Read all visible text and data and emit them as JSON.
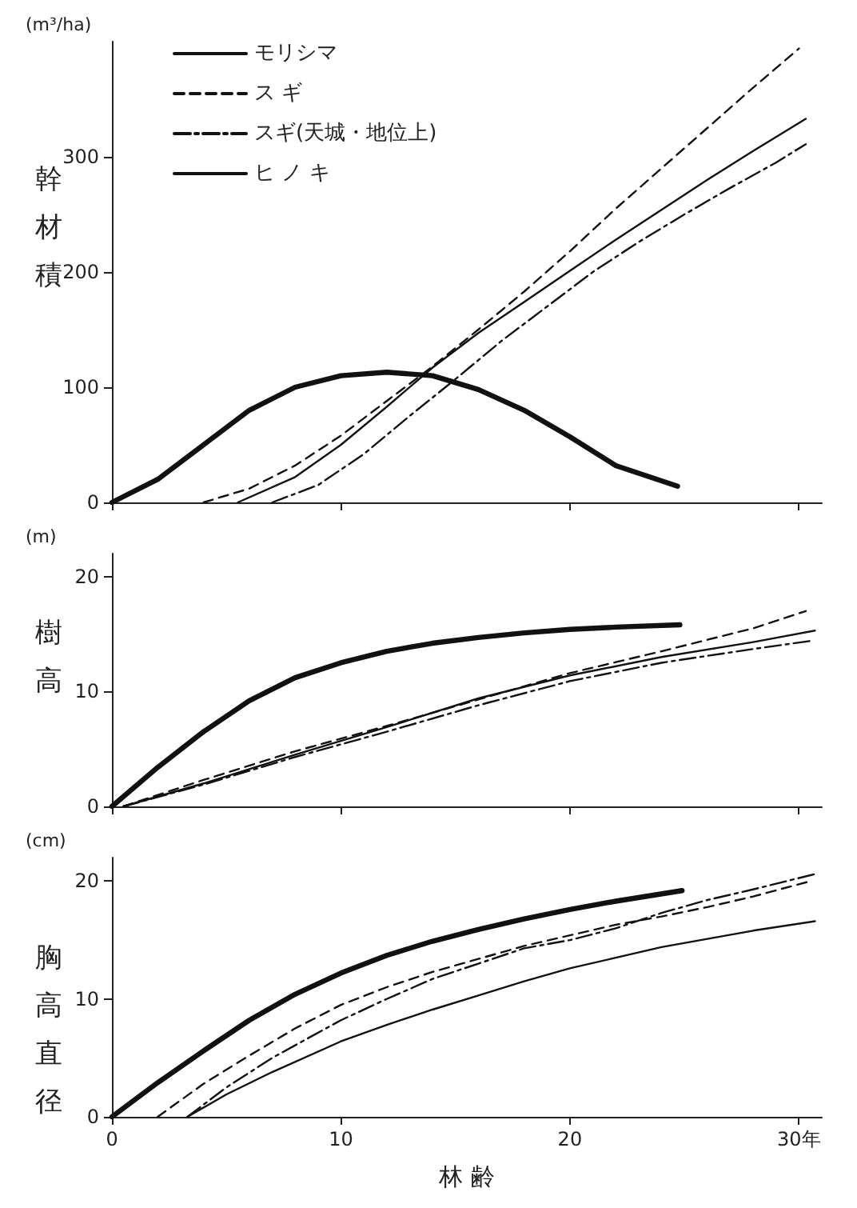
{
  "chart_data": [
    {
      "type": "line",
      "ylabel": "幹材積",
      "annotations": [
        "(m³/ha)"
      ],
      "xlim": [
        0,
        31
      ],
      "xticks": [
        0,
        10,
        20,
        30
      ],
      "ylim": [
        0,
        400
      ],
      "yticks": [
        0,
        100,
        200,
        300
      ],
      "tick_labels": "y",
      "grid": false,
      "legend": "top left",
      "marker": "none",
      "series": [
        {
          "name": "モリシマ",
          "color": "#111111",
          "line_style": "solid",
          "x": [
            0,
            2,
            4,
            6,
            8,
            10,
            12,
            14,
            16,
            18,
            20,
            22,
            24.7
          ],
          "values": [
            0,
            20,
            50,
            80,
            100,
            110,
            113,
            110,
            98,
            80,
            57,
            32,
            14
          ]
        },
        {
          "name": "ス ギ",
          "color": "#111111",
          "line_style": "dashed",
          "x": [
            4,
            6,
            8,
            10,
            12,
            14,
            16,
            18,
            20,
            22,
            24,
            26,
            28,
            30
          ],
          "values": [
            0,
            12,
            32,
            58,
            88,
            118,
            150,
            183,
            218,
            255,
            290,
            325,
            360,
            394
          ]
        },
        {
          "name": "スギ(天城・地位上)",
          "color": "#111111",
          "line_style": "dashdot",
          "x": [
            7,
            9,
            11,
            13,
            15,
            17,
            19,
            21,
            23,
            25,
            27,
            29,
            30.3
          ],
          "values": [
            0,
            15,
            42,
            75,
            107,
            140,
            170,
            200,
            226,
            250,
            273,
            295,
            311
          ]
        },
        {
          "name": "ヒ ノ キ",
          "color": "#111111",
          "line_style": "solid",
          "x": [
            5.5,
            8,
            10,
            12,
            14,
            16,
            18,
            20,
            22,
            24,
            26,
            28,
            30.3
          ],
          "values": [
            0,
            22,
            50,
            83,
            117,
            147,
            174,
            201,
            228,
            254,
            280,
            305,
            333
          ]
        }
      ]
    },
    {
      "type": "line",
      "ylabel": "樹高",
      "annotations": [
        "(m)"
      ],
      "xlim": [
        0,
        31
      ],
      "xticks": [
        0,
        10,
        20,
        30
      ],
      "ylim": [
        0,
        22
      ],
      "yticks": [
        0,
        10,
        20
      ],
      "tick_labels": "y",
      "grid": false,
      "legend": false,
      "marker": "none",
      "series": [
        {
          "color": "#111111",
          "line_style": "solid",
          "x": [
            0,
            2,
            4,
            6,
            8,
            10,
            12,
            14,
            16,
            18,
            20,
            22,
            24.8
          ],
          "values": [
            0,
            3.4,
            6.5,
            9.2,
            11.2,
            12.5,
            13.5,
            14.2,
            14.7,
            15.1,
            15.4,
            15.6,
            15.8
          ]
        },
        {
          "color": "#111111",
          "line_style": "dashed",
          "x": [
            0.5,
            4,
            8,
            12,
            16,
            20,
            24,
            28,
            30.3
          ],
          "values": [
            0,
            2.3,
            4.8,
            7.0,
            9.3,
            11.6,
            13.5,
            15.5,
            17.0
          ]
        },
        {
          "color": "#111111",
          "line_style": "dashdot",
          "x": [
            0.5,
            4,
            8,
            12,
            16,
            20,
            24,
            28,
            30.5
          ],
          "values": [
            0,
            1.9,
            4.3,
            6.5,
            8.8,
            10.9,
            12.5,
            13.7,
            14.4
          ]
        },
        {
          "color": "#111111",
          "line_style": "solid",
          "x": [
            0.5,
            4,
            8,
            12,
            16,
            20,
            24,
            28,
            30.7
          ],
          "values": [
            0,
            2.0,
            4.5,
            6.9,
            9.4,
            11.4,
            13.0,
            14.3,
            15.3
          ]
        }
      ]
    },
    {
      "type": "line",
      "ylabel": "胸高直径",
      "xlabel": "林 齢",
      "annotations": [
        "(cm)"
      ],
      "xlim": [
        0,
        31
      ],
      "xticks": [
        0,
        10,
        20,
        {
          "value": 30,
          "label": "30年"
        }
      ],
      "ylim": [
        0,
        22
      ],
      "yticks": [
        0,
        10,
        20
      ],
      "grid": false,
      "legend": false,
      "marker": "none",
      "series": [
        {
          "color": "#111111",
          "line_style": "solid",
          "x": [
            0,
            2,
            4,
            6,
            8,
            10,
            12,
            14,
            16,
            18,
            20,
            22,
            24.9
          ],
          "values": [
            0,
            2.9,
            5.6,
            8.2,
            10.4,
            12.2,
            13.7,
            14.9,
            15.9,
            16.8,
            17.6,
            18.3,
            19.2
          ]
        },
        {
          "color": "#111111",
          "line_style": "dashed",
          "x": [
            2,
            4,
            6,
            8,
            10,
            12,
            14,
            16,
            18,
            20,
            22,
            24,
            26,
            28,
            30.5
          ],
          "values": [
            0,
            2.8,
            5.2,
            7.5,
            9.5,
            11.0,
            12.3,
            13.4,
            14.5,
            15.4,
            16.3,
            17.0,
            17.8,
            18.7,
            20.0
          ]
        },
        {
          "color": "#111111",
          "line_style": "dashdot",
          "x": [
            3.3,
            5,
            7,
            10,
            12,
            14,
            16,
            18,
            20,
            22,
            24,
            26,
            28,
            30.7
          ],
          "values": [
            0,
            2.5,
            5.0,
            8.2,
            10.0,
            11.7,
            13.0,
            14.3,
            15.0,
            16.0,
            17.3,
            18.4,
            19.3,
            20.6
          ]
        },
        {
          "color": "#111111",
          "line_style": "solid",
          "x": [
            3.3,
            5,
            7,
            10,
            12,
            14,
            16,
            18,
            20,
            22,
            24,
            26,
            28,
            30.7
          ],
          "values": [
            0,
            1.9,
            3.8,
            6.4,
            7.8,
            9.1,
            10.3,
            11.5,
            12.6,
            13.5,
            14.4,
            15.1,
            15.8,
            16.6
          ]
        }
      ]
    }
  ]
}
